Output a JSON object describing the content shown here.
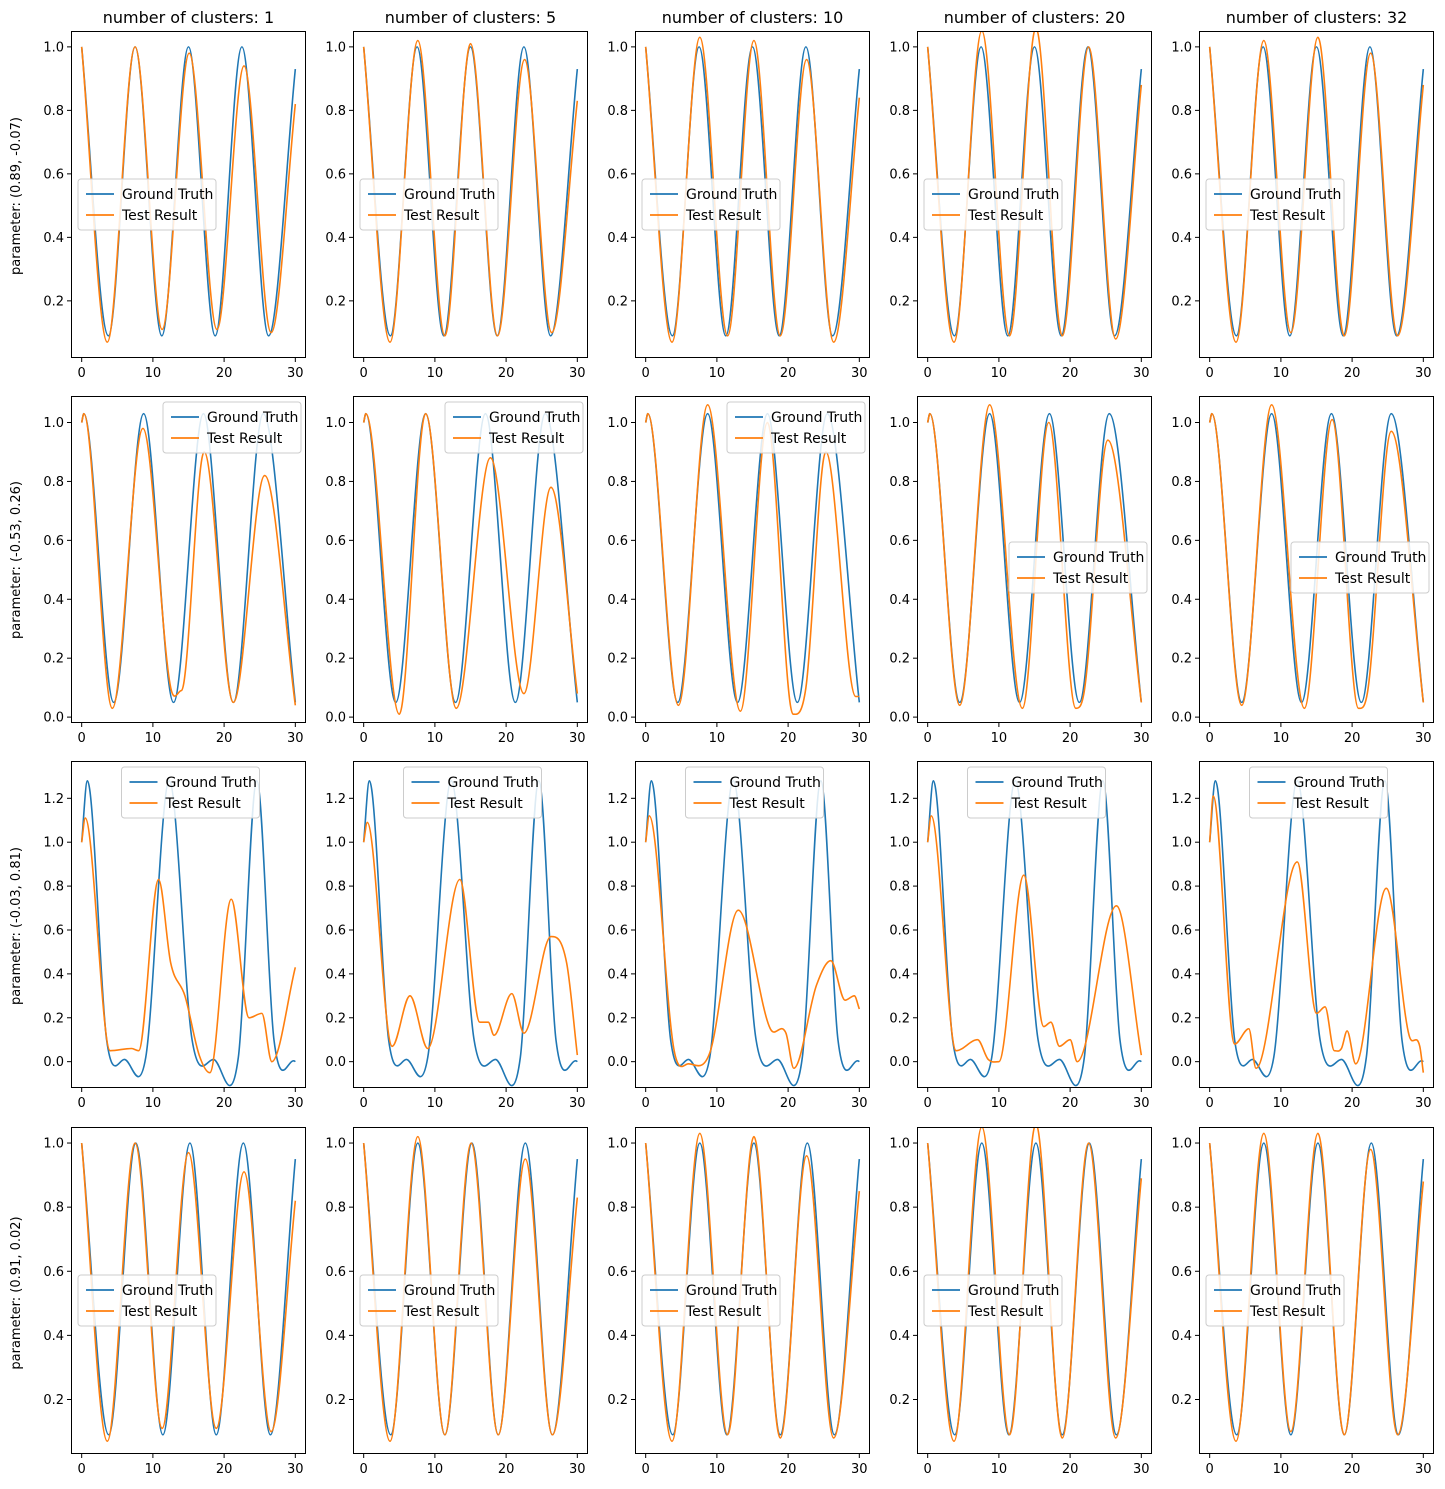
{
  "colors": {
    "ground_truth": "#1f77b4",
    "test_result": "#ff7f0e",
    "axes": "#000000",
    "legend_border": "#cccccc"
  },
  "col_titles": [
    "number of clusters: 1",
    "number of clusters: 5",
    "number of clusters: 10",
    "number of clusters: 20",
    "number of clusters: 32"
  ],
  "row_labels": [
    "parameter: (0.89, -0.07)",
    "parameter: (-0.53, 0.26)",
    "parameter: (-0.03, 0.81)",
    "parameter: (0.91, 0.02)"
  ],
  "legend": [
    "Ground Truth",
    "Test Result"
  ],
  "chart_data": {
    "type": "line",
    "x_range": [
      0,
      30
    ],
    "x_ticks": [
      0,
      10,
      20,
      30
    ],
    "series_names": [
      "Ground Truth",
      "Test Result"
    ],
    "rows": [
      {
        "ylim": [
          0.02,
          1.05
        ],
        "y_ticks": [
          0.2,
          0.4,
          0.6,
          0.8,
          1.0
        ],
        "legend_loc": [
          "center-left",
          "center-left",
          "center-left",
          "center-left",
          "center-left"
        ],
        "ground_truth": {
          "x": [
            0,
            3.75,
            7.5,
            11.25,
            15,
            18.75,
            22.5,
            26.25,
            30
          ],
          "y": [
            1.0,
            0.09,
            1.0,
            0.09,
            1.0,
            0.09,
            1.0,
            0.09,
            0.93
          ]
        },
        "tests": [
          {
            "x": [
              0,
              3.6,
              7.5,
              11.3,
              15.1,
              19.0,
              22.8,
              26.6,
              30
            ],
            "y": [
              1.0,
              0.07,
              1.0,
              0.11,
              0.98,
              0.11,
              0.94,
              0.1,
              0.82
            ]
          },
          {
            "x": [
              0,
              3.7,
              7.6,
              11.4,
              15.0,
              18.8,
              22.6,
              26.4,
              30
            ],
            "y": [
              1.0,
              0.07,
              1.02,
              0.09,
              1.01,
              0.09,
              0.96,
              0.1,
              0.83
            ]
          },
          {
            "x": [
              0,
              3.7,
              7.6,
              11.5,
              15.2,
              18.9,
              22.6,
              26.4,
              30
            ],
            "y": [
              1.0,
              0.07,
              1.03,
              0.09,
              1.02,
              0.09,
              0.96,
              0.07,
              0.84
            ]
          },
          {
            "x": [
              0,
              3.7,
              7.6,
              11.5,
              15.2,
              18.9,
              22.6,
              26.4,
              30
            ],
            "y": [
              1.0,
              0.07,
              1.05,
              0.09,
              1.06,
              0.09,
              1.0,
              0.08,
              0.88
            ]
          },
          {
            "x": [
              0,
              3.7,
              7.6,
              11.4,
              15.2,
              18.9,
              22.6,
              26.4,
              30
            ],
            "y": [
              1.0,
              0.07,
              1.02,
              0.1,
              1.03,
              0.09,
              0.98,
              0.09,
              0.88
            ]
          }
        ]
      },
      {
        "ylim": [
          -0.02,
          1.09
        ],
        "y_ticks": [
          0.0,
          0.2,
          0.4,
          0.6,
          0.8,
          1.0
        ],
        "legend_loc": [
          "upper-right",
          "upper-right",
          "upper-right",
          "center-right",
          "center-right"
        ],
        "ground_truth": {
          "x": [
            0,
            0.3,
            4.5,
            8.7,
            12.9,
            17.1,
            21.3,
            25.5,
            30
          ],
          "y": [
            1.0,
            1.03,
            0.05,
            1.03,
            0.05,
            1.03,
            0.05,
            1.03,
            0.05
          ]
        },
        "tests": [
          {
            "x": [
              0,
              0.3,
              4.3,
              8.6,
              12.5,
              14.0,
              17.2,
              21.3,
              25.7,
              30
            ],
            "y": [
              1.0,
              1.03,
              0.03,
              0.98,
              0.1,
              0.09,
              0.9,
              0.05,
              0.82,
              0.04
            ]
          },
          {
            "x": [
              0,
              0.3,
              5.0,
              8.7,
              13.0,
              17.8,
              22.5,
              26.3,
              30
            ],
            "y": [
              1.0,
              1.03,
              0.01,
              1.03,
              0.03,
              0.88,
              0.08,
              0.78,
              0.08
            ]
          },
          {
            "x": [
              0,
              0.3,
              4.6,
              8.7,
              13.3,
              17.1,
              20.7,
              22.5,
              25.3,
              29.5,
              30
            ],
            "y": [
              1.0,
              1.03,
              0.04,
              1.06,
              0.02,
              1.0,
              0.01,
              0.1,
              0.9,
              0.07,
              0.07
            ]
          },
          {
            "x": [
              0,
              0.3,
              4.5,
              8.7,
              13.3,
              17.0,
              20.8,
              22.0,
              25.3,
              30
            ],
            "y": [
              1.0,
              1.03,
              0.04,
              1.06,
              0.03,
              1.0,
              0.03,
              0.09,
              0.94,
              0.05
            ]
          },
          {
            "x": [
              0,
              0.3,
              4.5,
              8.7,
              13.3,
              17.2,
              20.9,
              22.2,
              25.5,
              30
            ],
            "y": [
              1.0,
              1.03,
              0.04,
              1.06,
              0.03,
              1.01,
              0.03,
              0.09,
              0.97,
              0.05
            ]
          }
        ]
      },
      {
        "ylim": [
          -0.12,
          1.37
        ],
        "y_ticks": [
          0.0,
          0.2,
          0.4,
          0.6,
          0.8,
          1.0,
          1.2
        ],
        "legend_loc": [
          "upper-center",
          "upper-center",
          "upper-center",
          "upper-center",
          "upper-center"
        ],
        "ground_truth": {
          "x": [
            0,
            0.8,
            3.5,
            6.0,
            9.0,
            12.3,
            15.5,
            18.5,
            22.0,
            24.6,
            27.0,
            30
          ],
          "y": [
            1.0,
            1.28,
            0.1,
            0.01,
            0.02,
            1.28,
            0.1,
            0.01,
            0.02,
            1.28,
            0.1,
            0.0
          ]
        },
        "tests": [
          {
            "x": [
              0,
              0.5,
              4.0,
              7.0,
              8.0,
              10.8,
              12.5,
              14.5,
              16.5,
              18.0,
              21.0,
              23.5,
              25.3,
              26.7,
              30
            ],
            "y": [
              1.0,
              1.11,
              0.05,
              0.06,
              0.05,
              0.83,
              0.45,
              0.3,
              0.03,
              -0.05,
              0.74,
              0.2,
              0.22,
              0.0,
              0.43
            ]
          },
          {
            "x": [
              0,
              0.5,
              4.0,
              6.5,
              9.0,
              13.5,
              16.3,
              17.5,
              18.3,
              20.8,
              22.5,
              26.3,
              28.5,
              30
            ],
            "y": [
              1.0,
              1.09,
              0.07,
              0.3,
              0.06,
              0.83,
              0.18,
              0.18,
              0.12,
              0.31,
              0.13,
              0.57,
              0.45,
              0.03
            ]
          },
          {
            "x": [
              0,
              0.5,
              4.0,
              6.0,
              9.0,
              13.0,
              17.5,
              19.7,
              20.8,
              24.0,
              26.0,
              28.0,
              29.3,
              30
            ],
            "y": [
              1.0,
              1.12,
              0.05,
              -0.01,
              0.04,
              0.69,
              0.15,
              0.13,
              -0.03,
              0.35,
              0.46,
              0.28,
              0.3,
              0.24
            ]
          },
          {
            "x": [
              0,
              0.5,
              4.0,
              7.0,
              8.5,
              10.0,
              13.5,
              16.3,
              17.3,
              18.5,
              20.0,
              21.0,
              26.5,
              30
            ],
            "y": [
              1.0,
              1.12,
              0.05,
              0.1,
              0.01,
              0.0,
              0.85,
              0.16,
              0.18,
              0.07,
              0.1,
              0.0,
              0.71,
              0.03
            ]
          },
          {
            "x": [
              0,
              0.5,
              3.5,
              5.5,
              6.5,
              12.3,
              15.0,
              16.2,
              17.5,
              18.5,
              19.3,
              20.5,
              24.8,
              28.0,
              29.5,
              30
            ],
            "y": [
              1.0,
              1.21,
              0.08,
              0.15,
              -0.03,
              0.91,
              0.22,
              0.25,
              0.05,
              0.06,
              0.14,
              -0.01,
              0.79,
              0.12,
              0.07,
              -0.05
            ]
          }
        ]
      },
      {
        "ylim": [
          0.03,
          1.05
        ],
        "y_ticks": [
          0.2,
          0.4,
          0.6,
          0.8,
          1.0
        ],
        "legend_loc": [
          "center-left",
          "center-left",
          "center-left",
          "center-left",
          "center-left"
        ],
        "ground_truth": {
          "x": [
            0,
            3.8,
            7.6,
            11.4,
            15.2,
            18.9,
            22.7,
            26.5,
            30
          ],
          "y": [
            1.0,
            0.09,
            1.0,
            0.09,
            1.0,
            0.09,
            1.0,
            0.09,
            0.95
          ]
        },
        "tests": [
          {
            "x": [
              0,
              3.6,
              7.5,
              11.3,
              15.0,
              18.9,
              22.8,
              26.6,
              30
            ],
            "y": [
              1.0,
              0.07,
              1.0,
              0.11,
              0.97,
              0.11,
              0.91,
              0.1,
              0.82
            ]
          },
          {
            "x": [
              0,
              3.7,
              7.6,
              11.4,
              15.1,
              18.9,
              22.7,
              26.5,
              30
            ],
            "y": [
              1.0,
              0.07,
              1.02,
              0.09,
              1.0,
              0.09,
              0.95,
              0.09,
              0.83
            ]
          },
          {
            "x": [
              0,
              3.7,
              7.6,
              11.5,
              15.2,
              18.9,
              22.6,
              26.4,
              30
            ],
            "y": [
              1.0,
              0.07,
              1.03,
              0.09,
              1.02,
              0.08,
              0.96,
              0.08,
              0.85
            ]
          },
          {
            "x": [
              0,
              3.7,
              7.6,
              11.5,
              15.2,
              18.9,
              22.6,
              26.4,
              30
            ],
            "y": [
              1.0,
              0.07,
              1.05,
              0.09,
              1.06,
              0.08,
              1.0,
              0.08,
              0.89
            ]
          },
          {
            "x": [
              0,
              3.7,
              7.6,
              11.4,
              15.2,
              18.9,
              22.6,
              26.4,
              30
            ],
            "y": [
              1.0,
              0.07,
              1.03,
              0.1,
              1.03,
              0.09,
              0.98,
              0.09,
              0.88
            ]
          }
        ]
      }
    ]
  }
}
